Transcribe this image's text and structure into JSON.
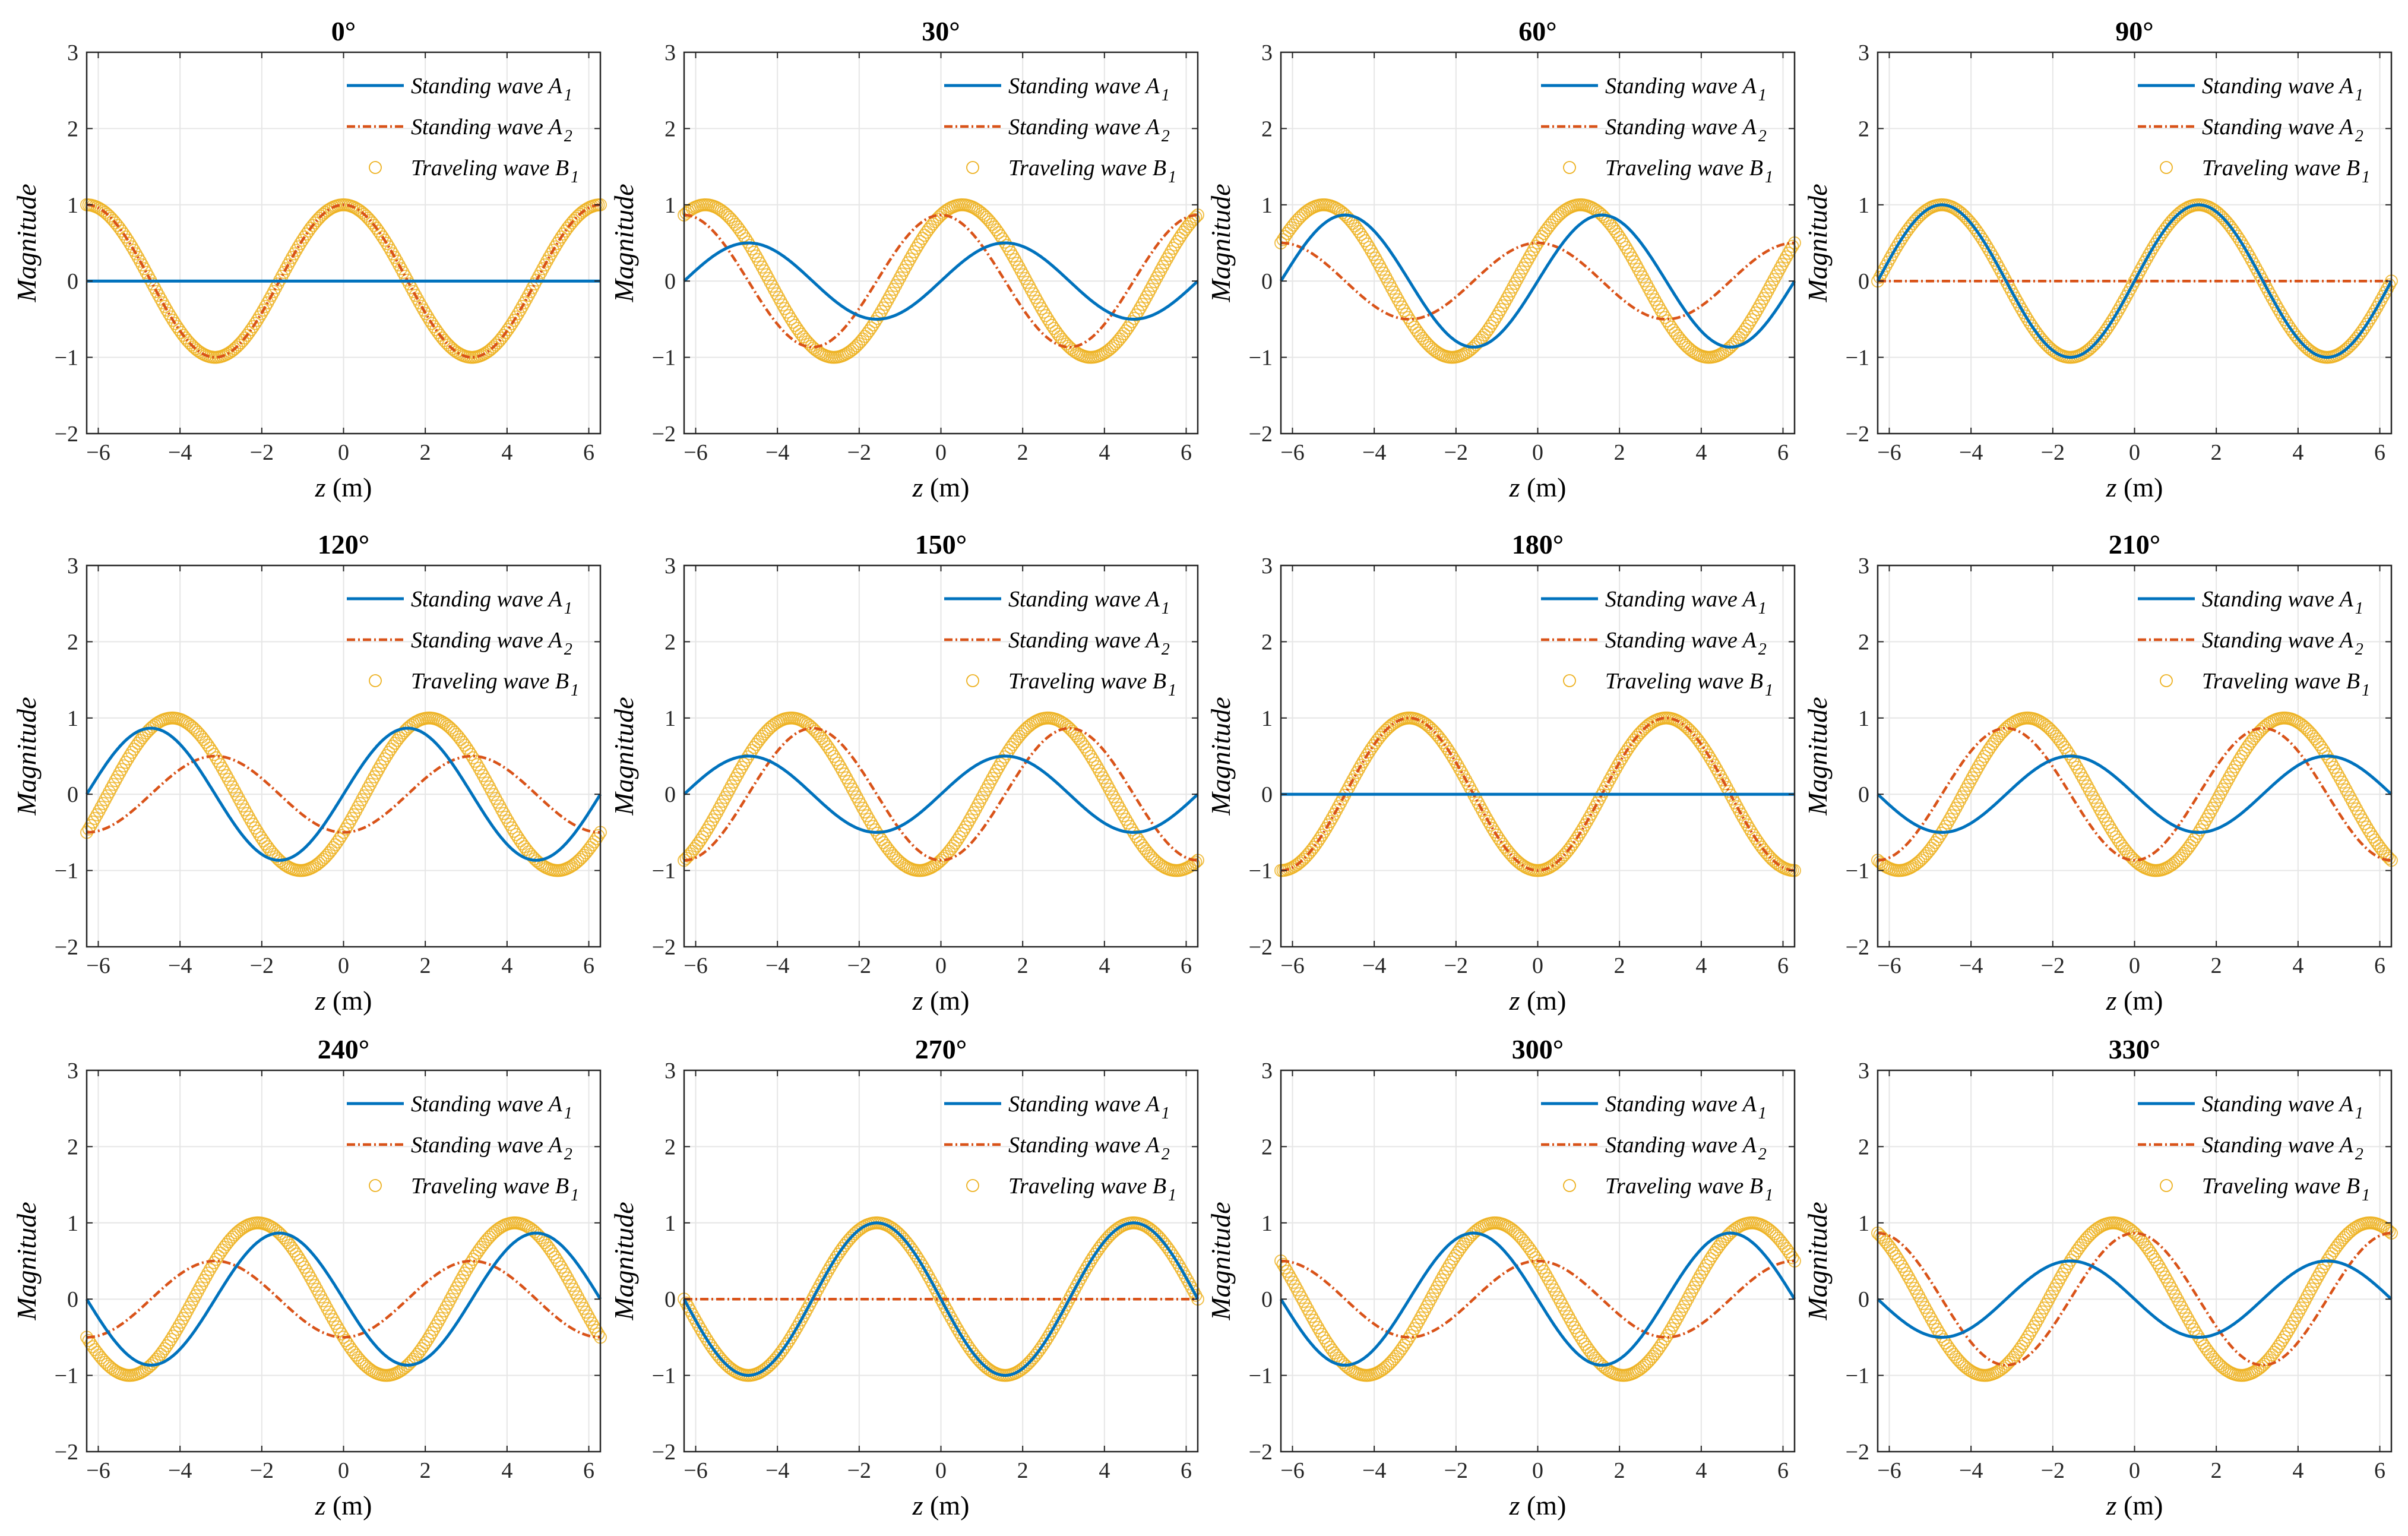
{
  "figure": {
    "xlabel_var": "z",
    "xlabel_unit": "(m)",
    "ylabel": "Magnitude",
    "colors": {
      "standing_a1": "#0072BD",
      "standing_a2": "#D95319",
      "traveling_b1": "#EDB120",
      "grid": "#e6e6e6",
      "axes": "#262626"
    }
  },
  "chart_data": {
    "type": "line",
    "description_formula": {
      "standing_a1": "sin(theta) * sin(z)",
      "standing_a2": "cos(theta) * cos(z)",
      "traveling_b1": "cos(z - theta)"
    },
    "xlim": [
      -6.2832,
      6.2832
    ],
    "ylim": [
      -2,
      3
    ],
    "xticks": [
      -6,
      -4,
      -2,
      0,
      2,
      4,
      6
    ],
    "xtick_labels": [
      "−6",
      "−4",
      "−2",
      "0",
      "2",
      "4",
      "6"
    ],
    "yticks": [
      -2,
      -1,
      0,
      1,
      2,
      3
    ],
    "ytick_labels": [
      "−2",
      "−1",
      "0",
      "1",
      "2",
      "3"
    ],
    "grid": true,
    "legend_position": "top-right",
    "legend": [
      {
        "key": "standing_a1",
        "base": "Standing wave ",
        "letter": "A",
        "sub": "1",
        "style": "solid-line"
      },
      {
        "key": "standing_a2",
        "base": "Standing wave ",
        "letter": "A",
        "sub": "2",
        "style": "dash-dot-line"
      },
      {
        "key": "traveling_b1",
        "base": "Traveling wave ",
        "letter": "B",
        "sub": "1",
        "style": "circle-markers"
      }
    ],
    "panels": [
      {
        "title": "0°",
        "phase_deg": 0
      },
      {
        "title": "30°",
        "phase_deg": 30
      },
      {
        "title": "60°",
        "phase_deg": 60
      },
      {
        "title": "90°",
        "phase_deg": 90
      },
      {
        "title": "120°",
        "phase_deg": 120
      },
      {
        "title": "150°",
        "phase_deg": 150
      },
      {
        "title": "180°",
        "phase_deg": 180
      },
      {
        "title": "210°",
        "phase_deg": 210
      },
      {
        "title": "240°",
        "phase_deg": 240
      },
      {
        "title": "270°",
        "phase_deg": 270
      },
      {
        "title": "300°",
        "phase_deg": 300
      },
      {
        "title": "330°",
        "phase_deg": 330
      }
    ]
  }
}
